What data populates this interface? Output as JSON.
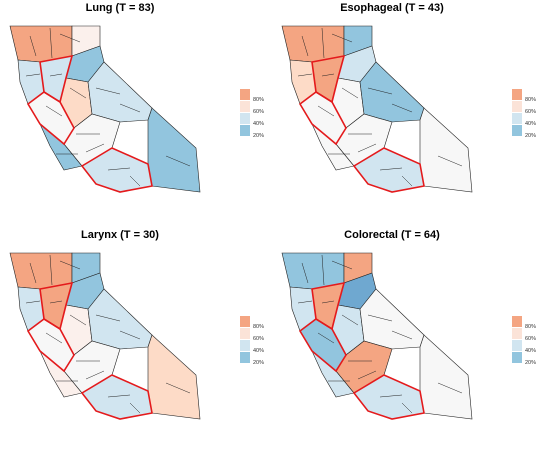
{
  "colors": {
    "red": "#f4a582",
    "light_red": "#fddbc7",
    "very_light_red": "#fbf0ec",
    "white": "#f7f7f7",
    "light_blue": "#d1e5f0",
    "blue": "#92c5de",
    "dark_blue": "#6fa8d0",
    "boundary_highlight": "#e41a1c",
    "boundary": "#222222"
  },
  "legend": {
    "labels": [
      "80%",
      "60%",
      "40%",
      "20%"
    ],
    "swatch_colors": [
      "#f4a582",
      "#fbe3d8",
      "#d1e5f0",
      "#92c5de"
    ]
  },
  "panels": [
    {
      "title": "Lung (T = 83)",
      "fills": [
        "#f4a582",
        "#fbf0ec",
        "#d1e5f0",
        "#92c5de",
        "#d1e5f0",
        "#fddbc7",
        "#f7f7f7",
        "#d1e5f0",
        "#92c5de",
        "#f7f7f7",
        "#d1e5f0",
        "#92c5de"
      ]
    },
    {
      "title": "Esophageal (T = 43)",
      "fills": [
        "#f4a582",
        "#92c5de",
        "#fddbc7",
        "#d1e5f0",
        "#f4a582",
        "#f7f7f7",
        "#f7f7f7",
        "#92c5de",
        "#f7f7f7",
        "#f7f7f7",
        "#d1e5f0",
        "#f7f7f7"
      ]
    },
    {
      "title": "Larynx (T = 30)",
      "fills": [
        "#f4a582",
        "#92c5de",
        "#d1e5f0",
        "#92c5de",
        "#f4a582",
        "#fbf0ec",
        "#f7f7f7",
        "#d1e5f0",
        "#fbf0ec",
        "#f7f7f7",
        "#d1e5f0",
        "#fddbc7"
      ]
    },
    {
      "title": "Colorectal (T = 64)",
      "fills": [
        "#92c5de",
        "#f4a582",
        "#d1e5f0",
        "#6fa8d0",
        "#f4a582",
        "#d1e5f0",
        "#92c5de",
        "#f7f7f7",
        "#d1e5f0",
        "#f4a582",
        "#d1e5f0",
        "#f7f7f7"
      ]
    }
  ]
}
